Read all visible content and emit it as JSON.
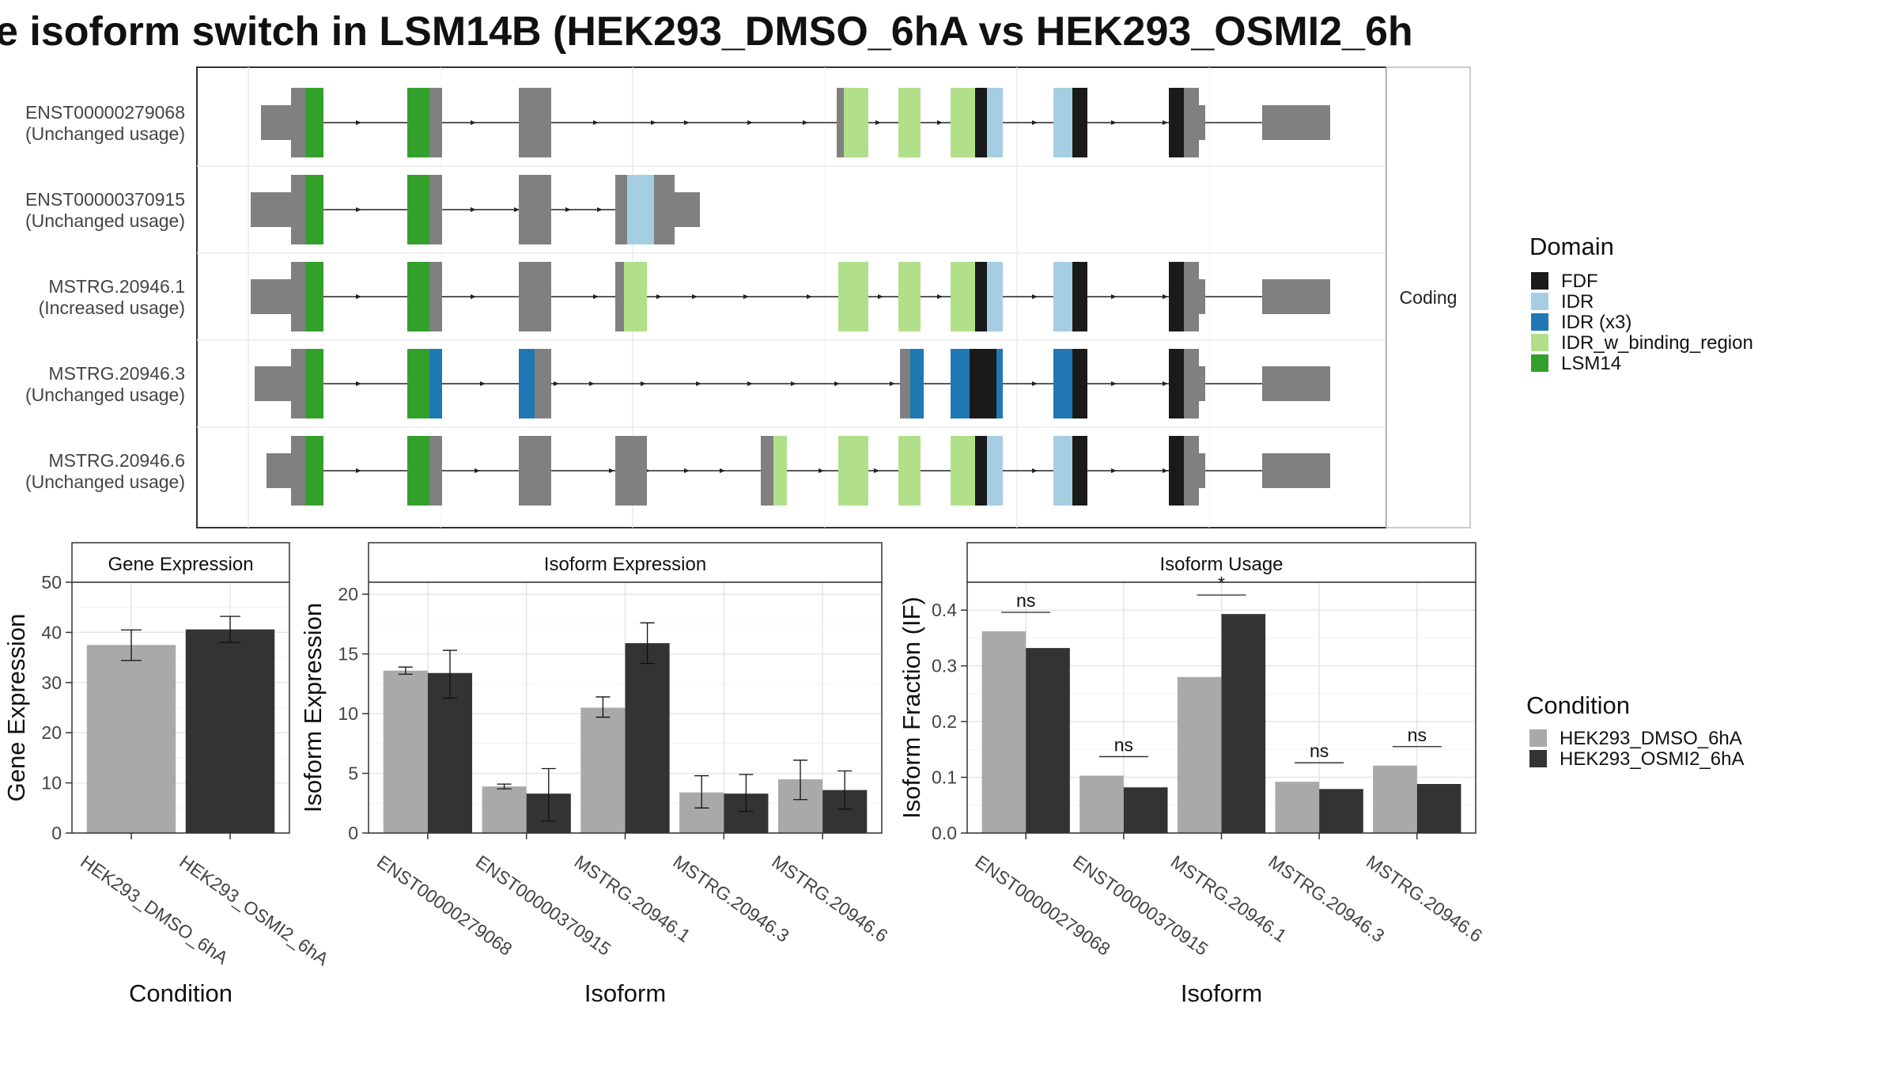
{
  "title": "e isoform switch in LSM14B (HEK293_DMSO_6hA vs HEK293_OSMI2_6h",
  "colors": {
    "FDF": "#1a1a1a",
    "IDR": "#a6cee3",
    "IDR (x3)": "#1f78b4",
    "IDR_w_binding_region": "#b2df8a",
    "LSM14": "#33a02c",
    "exon": "#808080",
    "dmso": "#a9a9a9",
    "osmi": "#333333"
  },
  "transcripts": {
    "strip_label": "Coding",
    "legend_title": "Domain",
    "legend_items": [
      "FDF",
      "IDR",
      "IDR (x3)",
      "IDR_w_binding_region",
      "LSM14"
    ],
    "rows": [
      {
        "id": "ENST00000279068",
        "status": "(Unchanged usage)"
      },
      {
        "id": "ENST00000370915",
        "status": "(Unchanged usage)"
      },
      {
        "id": "MSTRG.20946.1",
        "status": "(Increased usage)"
      },
      {
        "id": "MSTRG.20946.3",
        "status": "(Unchanged usage)"
      },
      {
        "id": "MSTRG.20946.6",
        "status": "(Unchanged usage)"
      }
    ]
  },
  "condition_legend": {
    "title": "Condition",
    "items": [
      "HEK293_DMSO_6hA",
      "HEK293_OSMI2_6hA"
    ]
  },
  "chart_data": [
    {
      "type": "bar",
      "title": "Gene Expression",
      "xlabel": "Condition",
      "ylabel": "Gene Expression",
      "ylim": [
        0,
        50
      ],
      "yticks": [
        0,
        10,
        20,
        30,
        40,
        50
      ],
      "categories": [
        "HEK293_DMSO_6hA",
        "HEK293_OSMI2_6hA"
      ],
      "values": [
        37.5,
        40.6
      ],
      "errors": [
        [
          34.4,
          40.5
        ],
        [
          38.0,
          43.2
        ]
      ]
    },
    {
      "type": "bar",
      "title": "Isoform Expression",
      "xlabel": "Isoform",
      "ylabel": "Isoform Expression",
      "ylim": [
        0,
        21
      ],
      "yticks": [
        0,
        5,
        10,
        15,
        20
      ],
      "categories": [
        "ENST00000279068",
        "ENST00000370915",
        "MSTRG.20946.1",
        "MSTRG.20946.3",
        "MSTRG.20946.6"
      ],
      "series": [
        {
          "name": "HEK293_DMSO_6hA",
          "values": [
            13.6,
            3.9,
            10.5,
            3.4,
            4.5
          ],
          "errors": [
            [
              13.3,
              13.9
            ],
            [
              3.7,
              4.1
            ],
            [
              9.7,
              11.4
            ],
            [
              2.1,
              4.8
            ],
            [
              2.8,
              6.1
            ]
          ]
        },
        {
          "name": "HEK293_OSMI2_6hA",
          "values": [
            13.4,
            3.3,
            15.9,
            3.3,
            3.6
          ],
          "errors": [
            [
              11.3,
              15.3
            ],
            [
              1.0,
              5.4
            ],
            [
              14.2,
              17.6
            ],
            [
              1.8,
              4.9
            ],
            [
              2.0,
              5.2
            ]
          ]
        }
      ]
    },
    {
      "type": "bar",
      "title": "Isoform Usage",
      "xlabel": "Isoform",
      "ylabel": "Isoform Fraction (IF)",
      "ylim": [
        0,
        0.45
      ],
      "yticks": [
        0.0,
        0.1,
        0.2,
        0.3,
        0.4
      ],
      "ytick_labels": [
        "0.0",
        "0.1",
        "0.2",
        "0.3",
        "0.4"
      ],
      "categories": [
        "ENST00000279068",
        "ENST00000370915",
        "MSTRG.20946.1",
        "MSTRG.20946.3",
        "MSTRG.20946.6"
      ],
      "series": [
        {
          "name": "HEK293_DMSO_6hA",
          "values": [
            0.362,
            0.103,
            0.28,
            0.092,
            0.121
          ]
        },
        {
          "name": "HEK293_OSMI2_6hA",
          "values": [
            0.332,
            0.082,
            0.393,
            0.079,
            0.088
          ]
        }
      ],
      "significance": [
        "ns",
        "ns",
        "*",
        "ns",
        "ns"
      ]
    }
  ]
}
